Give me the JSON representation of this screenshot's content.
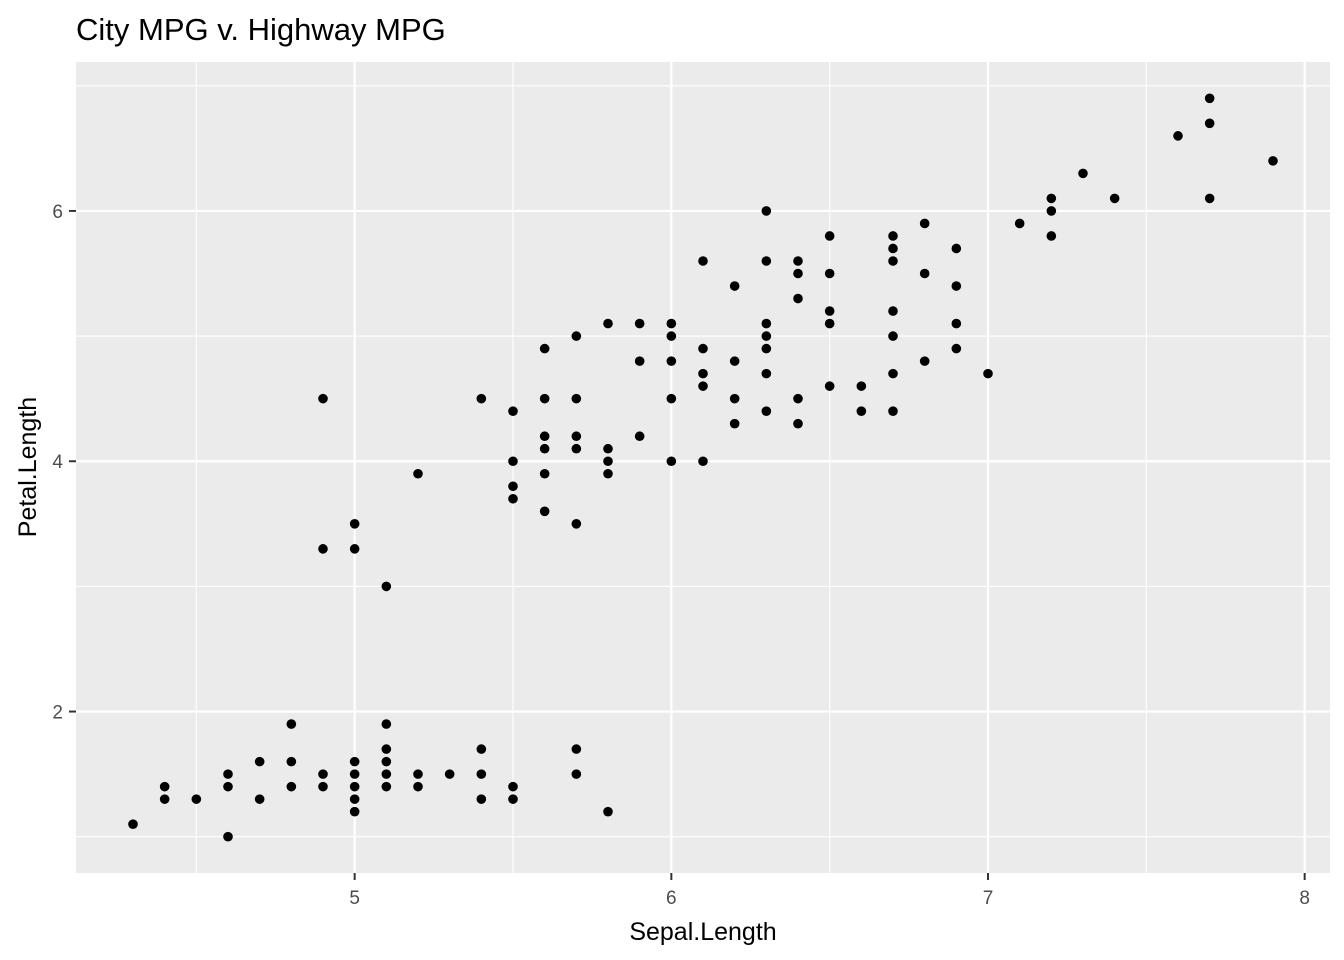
{
  "chart_data": {
    "type": "scatter",
    "title": "City MPG v. Highway MPG",
    "xlabel": "Sepal.Length",
    "ylabel": "Petal.Length",
    "xlim": [
      4.12,
      8.08
    ],
    "ylim": [
      0.71,
      7.19
    ],
    "x_ticks": [
      5,
      6,
      7,
      8
    ],
    "y_ticks": [
      2,
      4,
      6
    ],
    "x_minor": [
      4.5,
      5.5,
      6.5,
      7.5
    ],
    "y_minor": [
      1,
      3,
      5,
      7
    ],
    "grid": true,
    "legend": "none",
    "colors": {
      "panel_background": "#ebebeb",
      "grid": "#ffffff",
      "point": "#000000",
      "tick_label": "#4d4d4d",
      "tick_mark": "#333333"
    },
    "points": [
      [
        4.3,
        1.1
      ],
      [
        4.4,
        1.3
      ],
      [
        4.4,
        1.4
      ],
      [
        4.5,
        1.3
      ],
      [
        4.6,
        1.0
      ],
      [
        4.6,
        1.4
      ],
      [
        4.6,
        1.5
      ],
      [
        4.7,
        1.3
      ],
      [
        4.7,
        1.6
      ],
      [
        4.8,
        1.4
      ],
      [
        4.8,
        1.6
      ],
      [
        4.8,
        1.9
      ],
      [
        4.9,
        1.4
      ],
      [
        4.9,
        1.5
      ],
      [
        4.9,
        3.3
      ],
      [
        4.9,
        4.5
      ],
      [
        5.0,
        1.2
      ],
      [
        5.0,
        1.3
      ],
      [
        5.0,
        1.4
      ],
      [
        5.0,
        1.5
      ],
      [
        5.0,
        1.6
      ],
      [
        5.0,
        3.3
      ],
      [
        5.0,
        3.5
      ],
      [
        5.1,
        1.4
      ],
      [
        5.1,
        1.5
      ],
      [
        5.1,
        1.6
      ],
      [
        5.1,
        1.7
      ],
      [
        5.1,
        1.9
      ],
      [
        5.1,
        3.0
      ],
      [
        5.2,
        1.4
      ],
      [
        5.2,
        1.5
      ],
      [
        5.2,
        3.9
      ],
      [
        5.3,
        1.5
      ],
      [
        5.4,
        1.3
      ],
      [
        5.4,
        1.5
      ],
      [
        5.4,
        1.7
      ],
      [
        5.4,
        4.5
      ],
      [
        5.5,
        1.3
      ],
      [
        5.5,
        1.4
      ],
      [
        5.5,
        3.7
      ],
      [
        5.5,
        3.8
      ],
      [
        5.5,
        4.0
      ],
      [
        5.5,
        4.4
      ],
      [
        5.6,
        3.6
      ],
      [
        5.6,
        3.9
      ],
      [
        5.6,
        4.1
      ],
      [
        5.6,
        4.2
      ],
      [
        5.6,
        4.5
      ],
      [
        5.6,
        4.9
      ],
      [
        5.7,
        1.5
      ],
      [
        5.7,
        1.7
      ],
      [
        5.7,
        3.5
      ],
      [
        5.7,
        4.1
      ],
      [
        5.7,
        4.2
      ],
      [
        5.7,
        4.5
      ],
      [
        5.7,
        5.0
      ],
      [
        5.8,
        1.2
      ],
      [
        5.8,
        3.9
      ],
      [
        5.8,
        4.0
      ],
      [
        5.8,
        4.1
      ],
      [
        5.8,
        5.1
      ],
      [
        5.9,
        4.2
      ],
      [
        5.9,
        4.8
      ],
      [
        5.9,
        5.1
      ],
      [
        6.0,
        4.0
      ],
      [
        6.0,
        4.5
      ],
      [
        6.0,
        4.8
      ],
      [
        6.0,
        5.0
      ],
      [
        6.0,
        5.1
      ],
      [
        6.1,
        4.0
      ],
      [
        6.1,
        4.6
      ],
      [
        6.1,
        4.7
      ],
      [
        6.1,
        4.9
      ],
      [
        6.1,
        5.6
      ],
      [
        6.2,
        4.3
      ],
      [
        6.2,
        4.5
      ],
      [
        6.2,
        4.8
      ],
      [
        6.2,
        5.4
      ],
      [
        6.3,
        4.4
      ],
      [
        6.3,
        4.7
      ],
      [
        6.3,
        4.9
      ],
      [
        6.3,
        5.0
      ],
      [
        6.3,
        5.1
      ],
      [
        6.3,
        5.6
      ],
      [
        6.3,
        6.0
      ],
      [
        6.4,
        4.3
      ],
      [
        6.4,
        4.5
      ],
      [
        6.4,
        5.3
      ],
      [
        6.4,
        5.5
      ],
      [
        6.4,
        5.6
      ],
      [
        6.5,
        4.6
      ],
      [
        6.5,
        5.1
      ],
      [
        6.5,
        5.2
      ],
      [
        6.5,
        5.5
      ],
      [
        6.5,
        5.8
      ],
      [
        6.6,
        4.4
      ],
      [
        6.6,
        4.6
      ],
      [
        6.7,
        4.4
      ],
      [
        6.7,
        4.7
      ],
      [
        6.7,
        5.0
      ],
      [
        6.7,
        5.2
      ],
      [
        6.7,
        5.6
      ],
      [
        6.7,
        5.7
      ],
      [
        6.7,
        5.8
      ],
      [
        6.8,
        4.8
      ],
      [
        6.8,
        5.5
      ],
      [
        6.8,
        5.9
      ],
      [
        6.9,
        4.9
      ],
      [
        6.9,
        5.1
      ],
      [
        6.9,
        5.4
      ],
      [
        6.9,
        5.7
      ],
      [
        7.0,
        4.7
      ],
      [
        7.1,
        5.9
      ],
      [
        7.2,
        5.8
      ],
      [
        7.2,
        6.0
      ],
      [
        7.2,
        6.1
      ],
      [
        7.3,
        6.3
      ],
      [
        7.4,
        6.1
      ],
      [
        7.6,
        6.6
      ],
      [
        7.7,
        6.1
      ],
      [
        7.7,
        6.7
      ],
      [
        7.7,
        6.9
      ],
      [
        7.9,
        6.4
      ]
    ]
  }
}
